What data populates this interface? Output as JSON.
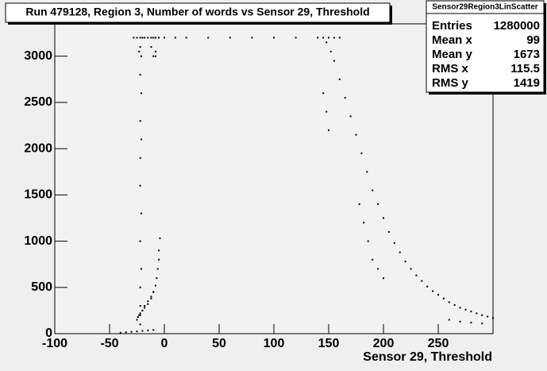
{
  "chart_data": {
    "type": "scatter",
    "title": "Run 479128, Region 3, Number of words vs Sensor 29, Threshold",
    "x_label": "Sensor 29, Threshold",
    "xlim": [
      -100,
      300
    ],
    "ylim": [
      0,
      3350
    ],
    "xticks": [
      -100,
      -50,
      0,
      50,
      100,
      150,
      200,
      250
    ],
    "yticks": [
      0,
      500,
      1000,
      1500,
      2000,
      2500,
      3000
    ],
    "color": "#000000",
    "x": [
      -28,
      -25,
      -22,
      -20,
      -18,
      -15,
      -12,
      -10,
      -8,
      -5,
      0,
      10,
      20,
      40,
      60,
      80,
      100,
      120,
      140,
      145,
      150,
      155,
      160,
      -22,
      -22,
      -22,
      -21,
      -22,
      -21,
      -22,
      -22,
      -21,
      -22,
      -21,
      -22,
      -21,
      -23,
      -22,
      -25,
      -24,
      -23,
      -22,
      -20,
      -18,
      -15,
      -12,
      -10,
      -8,
      -7,
      -6,
      -5,
      -5,
      -4,
      -10,
      -8,
      -40,
      -35,
      -30,
      -25,
      -20,
      -15,
      -10,
      -12,
      -8,
      -25,
      -22,
      -20,
      -18,
      -15,
      -12,
      -10,
      148,
      152,
      155,
      160,
      165,
      170,
      175,
      180,
      185,
      190,
      195,
      200,
      205,
      210,
      215,
      220,
      225,
      230,
      235,
      240,
      245,
      250,
      255,
      260,
      265,
      270,
      275,
      280,
      285,
      290,
      295,
      300,
      145,
      148,
      150,
      178,
      182,
      186,
      190,
      195,
      200,
      260,
      270,
      280,
      290
    ],
    "values": [
      3200,
      3200,
      3200,
      3200,
      3200,
      3200,
      3200,
      3200,
      3200,
      3200,
      3200,
      3200,
      3200,
      3200,
      3200,
      3200,
      3200,
      3200,
      3200,
      3200,
      3200,
      3200,
      3200,
      100,
      300,
      500,
      700,
      1000,
      1300,
      1600,
      1900,
      2100,
      2300,
      2600,
      2800,
      3000,
      3050,
      3100,
      150,
      180,
      200,
      220,
      250,
      280,
      320,
      380,
      450,
      520,
      600,
      700,
      800,
      900,
      1030,
      3000,
      3050,
      10,
      15,
      20,
      25,
      30,
      35,
      40,
      3100,
      3000,
      150,
      200,
      250,
      300,
      350,
      400,
      450,
      3150,
      3050,
      2950,
      2750,
      2550,
      2350,
      2150,
      1950,
      1750,
      1550,
      1400,
      1250,
      1100,
      980,
      880,
      780,
      700,
      630,
      570,
      510,
      460,
      420,
      380,
      340,
      310,
      280,
      260,
      240,
      220,
      200,
      185,
      170,
      2600,
      2400,
      2200,
      1400,
      1200,
      1000,
      800,
      700,
      600,
      150,
      130,
      120,
      110
    ],
    "stats": {
      "title": "Sensor29Region3LinScatter",
      "labels": [
        "Entries",
        "Mean x",
        "Mean y",
        "RMS x",
        "RMS y"
      ],
      "values": [
        1280000,
        99,
        1673,
        115.5,
        1419
      ]
    }
  }
}
